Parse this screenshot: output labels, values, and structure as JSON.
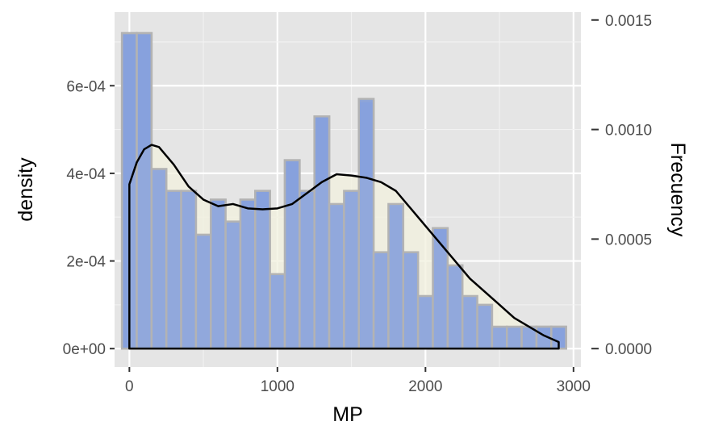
{
  "chart_data": {
    "type": "bar",
    "title": "",
    "xlabel": "MP",
    "ylabel": "density",
    "y2label": "Frecuency",
    "xlim": [
      -100,
      3050
    ],
    "ylim": [
      -4.2e-05,
      0.000768
    ],
    "y2lim": [
      -8.4e-05,
      0.001536
    ],
    "xticks": [
      0,
      1000,
      2000,
      3000
    ],
    "xtick_labels": [
      "0",
      "1000",
      "2000",
      "3000"
    ],
    "yticks": [
      0,
      0.0002,
      0.0004,
      0.0006
    ],
    "ytick_labels": [
      "0e+00",
      "2e-04",
      "4e-04",
      "6e-04"
    ],
    "y2ticks": [
      0,
      0.0005,
      0.001,
      0.0015
    ],
    "y2tick_labels": [
      "0.0000",
      "0.0005",
      "0.0010",
      "0.0015"
    ],
    "grid": true,
    "bin_width": 100,
    "bin_centers": [
      0,
      100,
      200,
      300,
      400,
      500,
      600,
      700,
      800,
      900,
      1000,
      1100,
      1200,
      1300,
      1400,
      1500,
      1600,
      1700,
      1800,
      1900,
      2000,
      2100,
      2200,
      2300,
      2400,
      2500,
      2600,
      2700,
      2800,
      2900
    ],
    "series": [
      {
        "role": "frequency_histogram",
        "axis": "right",
        "values": [
          0.00144,
          0.00144,
          0.00082,
          0.00072,
          0.00072,
          0.00052,
          0.00068,
          0.00058,
          0.00068,
          0.00072,
          0.00034,
          0.00086,
          0.00072,
          0.00106,
          0.00065,
          0.00072,
          0.00113,
          0.00044,
          0.00065,
          0.00044,
          0.00024,
          0.00055,
          0.00038,
          0.00024,
          0.0002,
          0.0001,
          0.0001,
          0.0001,
          0.0001,
          0.0001
        ],
        "fill": "#6f8fea",
        "outline": "#b3b3b3"
      },
      {
        "role": "density_histogram",
        "axis": "left",
        "values": [
          0.00072,
          0.00072,
          0.00041,
          0.00036,
          0.00036,
          0.00026,
          0.00034,
          0.00029,
          0.00034,
          0.00036,
          0.00017,
          0.00043,
          0.00036,
          0.00053,
          0.00033,
          0.00036,
          0.00057,
          0.00022,
          0.00033,
          0.00022,
          0.00012,
          0.000275,
          0.00019,
          0.00012,
          0.0001,
          5e-05,
          5e-05,
          5e-05,
          5e-05,
          5e-05
        ],
        "fill": "#8aa3dc",
        "alpha": 0.9,
        "outline": "#b3b3b3"
      },
      {
        "role": "density_curve",
        "axis": "left",
        "x": [
          0,
          50,
          100,
          150,
          200,
          300,
          400,
          500,
          600,
          700,
          800,
          900,
          1000,
          1100,
          1200,
          1300,
          1400,
          1500,
          1600,
          1700,
          1800,
          1900,
          2000,
          2100,
          2200,
          2300,
          2400,
          2500,
          2600,
          2700,
          2800,
          2900
        ],
        "values": [
          0.000375,
          0.000425,
          0.000455,
          0.000465,
          0.00046,
          0.00042,
          0.00037,
          0.00034,
          0.000325,
          0.00033,
          0.00032,
          0.000318,
          0.00032,
          0.00033,
          0.000355,
          0.00038,
          0.000398,
          0.000395,
          0.00039,
          0.00038,
          0.00036,
          0.00032,
          0.00028,
          0.00024,
          0.0002,
          0.00016,
          0.00013,
          0.0001,
          7e-05,
          5e-05,
          3e-05,
          1.5e-05
        ],
        "line_color": "#000000",
        "fill": "#f2f0dd",
        "fill_alpha": 0.75
      }
    ]
  }
}
